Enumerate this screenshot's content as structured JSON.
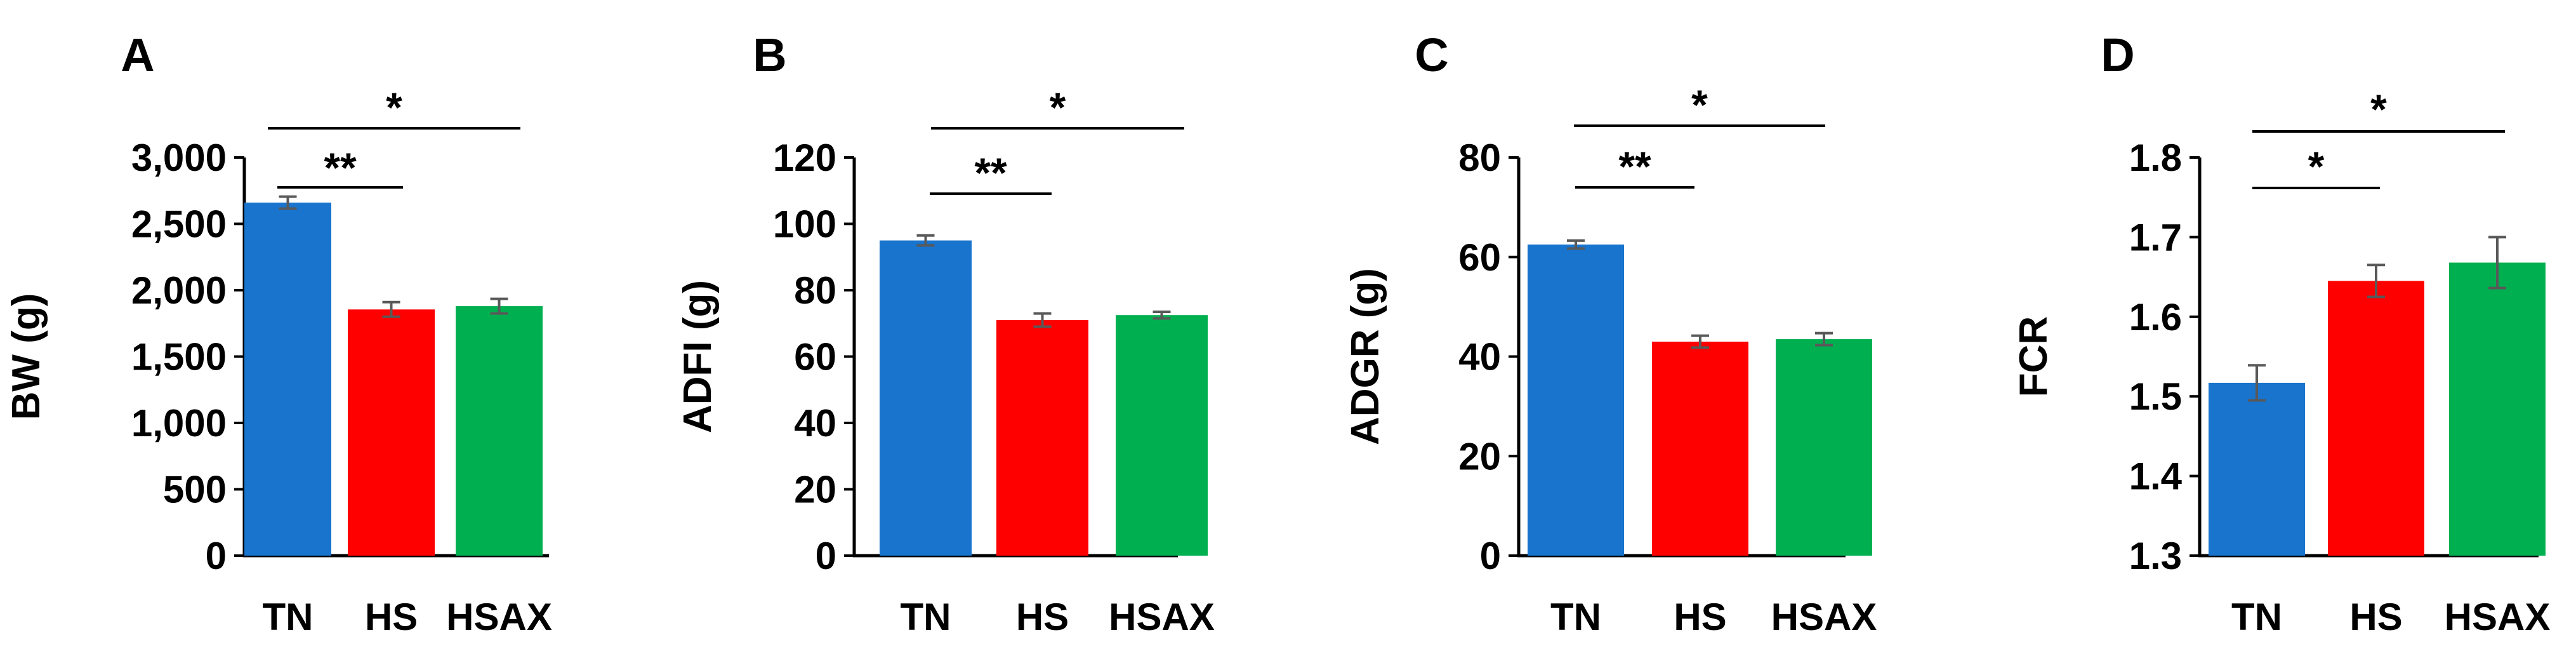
{
  "chart_data": [
    {
      "panel": "A",
      "type": "bar",
      "categories": [
        "TN",
        "HS",
        "HSAX"
      ],
      "values": [
        2660,
        1855,
        1880
      ],
      "errors": [
        45,
        55,
        55
      ],
      "ylabel": "BW (g)",
      "ylim": [
        0,
        3000
      ],
      "yticks": [
        0,
        500,
        1000,
        1500,
        2000,
        2500,
        3000
      ],
      "ytick_labels": [
        "0",
        "500",
        "1,000",
        "1,500",
        "2,000",
        "2,500",
        "3,000"
      ],
      "significance": [
        {
          "from": "TN",
          "to": "HS",
          "label": "**"
        },
        {
          "from": "TN",
          "to": "HSAX",
          "label": "*"
        }
      ]
    },
    {
      "panel": "B",
      "type": "bar",
      "categories": [
        "TN",
        "HS",
        "HSAX"
      ],
      "values": [
        95,
        71,
        72.5
      ],
      "errors": [
        1.5,
        2,
        1
      ],
      "ylabel": "ADFI (g)",
      "ylim": [
        0,
        120
      ],
      "yticks": [
        0,
        20,
        40,
        60,
        80,
        100,
        120
      ],
      "ytick_labels": [
        "0",
        "20",
        "40",
        "60",
        "80",
        "100",
        "120"
      ],
      "significance": [
        {
          "from": "TN",
          "to": "HS",
          "label": "**"
        },
        {
          "from": "TN",
          "to": "HSAX",
          "label": "*"
        }
      ]
    },
    {
      "panel": "C",
      "type": "bar",
      "categories": [
        "TN",
        "HS",
        "HSAX"
      ],
      "values": [
        62.5,
        43,
        43.5
      ],
      "errors": [
        0.8,
        1.2,
        1.2
      ],
      "ylabel": "ADGR (g)",
      "ylim": [
        0,
        80
      ],
      "yticks": [
        0,
        20,
        40,
        60,
        80
      ],
      "ytick_labels": [
        "0",
        "20",
        "40",
        "60",
        "80"
      ],
      "significance": [
        {
          "from": "TN",
          "to": "HS",
          "label": "**"
        },
        {
          "from": "TN",
          "to": "HSAX",
          "label": "*"
        }
      ]
    },
    {
      "panel": "D",
      "type": "bar",
      "categories": [
        "TN",
        "HS",
        "HSAX"
      ],
      "values": [
        1.517,
        1.645,
        1.668
      ],
      "errors": [
        0.022,
        0.02,
        0.032
      ],
      "ylabel": "FCR",
      "ylim": [
        1.3,
        1.8
      ],
      "yticks": [
        1.3,
        1.4,
        1.5,
        1.6,
        1.7,
        1.8
      ],
      "ytick_labels": [
        "1.3",
        "1.4",
        "1.5",
        "1.6",
        "1.7",
        "1.8"
      ],
      "significance": [
        {
          "from": "TN",
          "to": "HS",
          "label": "*"
        },
        {
          "from": "TN",
          "to": "HSAX",
          "label": "*"
        }
      ]
    }
  ],
  "colors": {
    "TN": "#1874CD",
    "HS": "#FF0000",
    "HSAX": "#00B050",
    "axis": "#000000",
    "error_bar": "#595959"
  }
}
